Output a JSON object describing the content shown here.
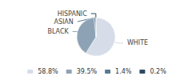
{
  "chart_data": {
    "type": "pie",
    "categories": [
      "WHITE",
      "BLACK",
      "ASIAN",
      "HISPANIC"
    ],
    "values": [
      58.8,
      39.5,
      1.4,
      0.2
    ],
    "value_labels": [
      "58.8%",
      "39.5%",
      "1.4%",
      "0.2%"
    ],
    "colors": [
      "#d6dde8",
      "#8da3b5",
      "#5b7a91",
      "#2e4a62"
    ],
    "legend": "bottom"
  }
}
